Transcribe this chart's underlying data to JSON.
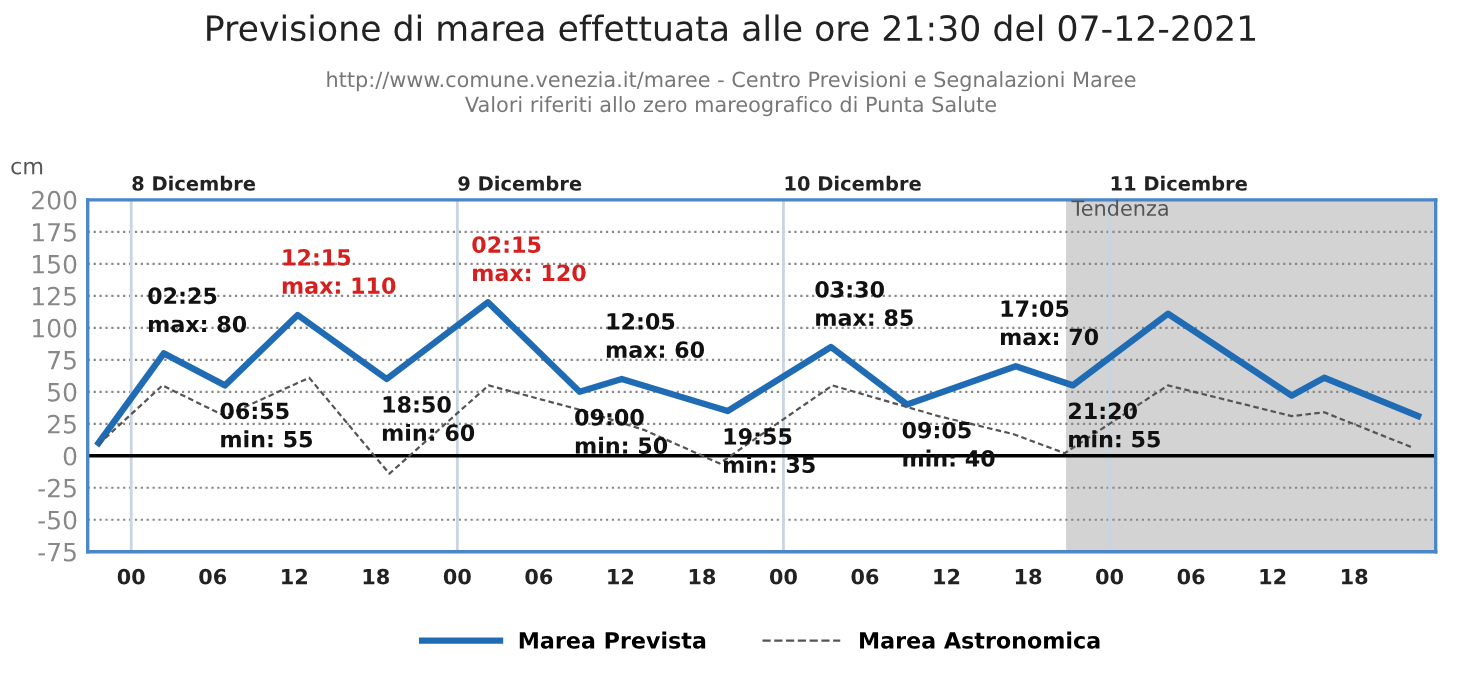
{
  "chart_data": {
    "type": "line",
    "title": "Previsione di marea effettuata alle ore 21:30 del 07-12-2021",
    "subtitle": "http://www.comune.venezia.it/maree - Centro Previsioni e Segnalazioni Maree\nValori riferiti allo zero mareografico di Punta Salute",
    "ylabel": "cm",
    "series": [
      {
        "name": "Marea Prevista",
        "color": "#1f6cb5",
        "line_style": "solid",
        "x": [
          -2.4,
          2.4,
          6.9,
          12.25,
          18.8,
          26.25,
          33,
          36.1,
          43.9,
          51.5,
          57.1,
          65.1,
          69.3,
          76.3,
          85.4,
          87.8,
          94.7
        ],
        "values": [
          10,
          80,
          55,
          110,
          60,
          120,
          50,
          60,
          35,
          85,
          40,
          70,
          55,
          111,
          47,
          61,
          31
        ]
      },
      {
        "name": "Marea Astronomica",
        "color": "#555555",
        "line_style": "dashed",
        "x": [
          -2.4,
          2.3,
          6.9,
          13.1,
          19,
          26.3,
          33,
          37.8,
          43.3,
          51.6,
          59.4,
          64.9,
          68.7,
          76.3,
          85.4,
          87.8,
          94.4
        ],
        "values": [
          9,
          55,
          31,
          61,
          -14,
          55,
          36,
          20,
          -6,
          55,
          31,
          17,
          2,
          55,
          31,
          34,
          6
        ]
      }
    ],
    "xlim": [
      -3.2,
      96
    ],
    "xticks": [
      {
        "value": 0,
        "label": "00"
      },
      {
        "value": 6,
        "label": "06"
      },
      {
        "value": 12,
        "label": "12"
      },
      {
        "value": 18,
        "label": "18"
      },
      {
        "value": 24,
        "label": "00"
      },
      {
        "value": 30,
        "label": "06"
      },
      {
        "value": 36,
        "label": "12"
      },
      {
        "value": 42,
        "label": "18"
      },
      {
        "value": 48,
        "label": "00"
      },
      {
        "value": 54,
        "label": "06"
      },
      {
        "value": 60,
        "label": "12"
      },
      {
        "value": 66,
        "label": "18"
      },
      {
        "value": 72,
        "label": "00"
      },
      {
        "value": 78,
        "label": "06"
      },
      {
        "value": 84,
        "label": "12"
      },
      {
        "value": 90,
        "label": "18"
      }
    ],
    "ylim": [
      -75,
      200
    ],
    "yticks": [
      -75,
      -50,
      -25,
      0,
      25,
      50,
      75,
      100,
      125,
      150,
      175,
      200
    ],
    "grid": "y",
    "legend": "bottom",
    "ref_lines": [
      {
        "axis": "y",
        "value": 0,
        "color": "#000000"
      },
      {
        "axis": "x",
        "value": 0,
        "label": "8 Dicembre",
        "color": "#c8d4e0"
      },
      {
        "axis": "x",
        "value": 24,
        "label": "9 Dicembre",
        "color": "#c8d4e0"
      },
      {
        "axis": "x",
        "value": 48,
        "label": "10 Dicembre",
        "color": "#c8d4e0"
      },
      {
        "axis": "x",
        "value": 72,
        "label": "11 Dicembre",
        "color": "#c8d4e0"
      }
    ],
    "bands": [
      {
        "axis": "x",
        "from": 68.8,
        "to": 96,
        "label": "Tendenza",
        "color": "#d3d3d3"
      }
    ],
    "annotations": [
      {
        "text": "02:25\nmax: 80",
        "x": 2.4,
        "y": 80
      },
      {
        "text": "06:55\nmin: 55",
        "x": 6.9,
        "y": 55
      },
      {
        "text": "12:15\nmax: 110",
        "x": 12.25,
        "y": 110
      },
      {
        "text": "18:50\nmin: 60",
        "x": 18.8,
        "y": 60
      },
      {
        "text": "02:15\nmax: 120",
        "x": 26.25,
        "y": 120
      },
      {
        "text": "09:00\nmin: 50",
        "x": 33,
        "y": 50
      },
      {
        "text": "12:05\nmax: 60",
        "x": 36.1,
        "y": 60
      },
      {
        "text": "19:55\nmin: 35",
        "x": 43.9,
        "y": 35
      },
      {
        "text": "03:30\nmax: 85",
        "x": 51.5,
        "y": 85
      },
      {
        "text": "09:05\nmin: 40",
        "x": 57.1,
        "y": 40
      },
      {
        "text": "17:05\nmax: 70",
        "x": 65.1,
        "y": 70
      },
      {
        "text": "21:20\nmin: 55",
        "x": 69.3,
        "y": 55
      }
    ]
  }
}
